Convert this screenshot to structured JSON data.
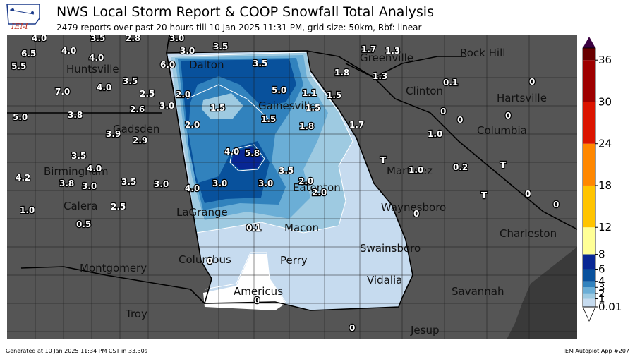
{
  "header": {
    "logo_text": "IEM",
    "title": "NWS Local Storm Report & COOP Snowfall Total Analysis",
    "subtitle": "2479 reports over past 20 hours till 10 Jan 2025 11:31 PM, grid size: 50km, Rbf: linear"
  },
  "footer": {
    "generated": "Generated at 10 Jan 2025 11:34 PM CST in 33.30s",
    "app": "IEM Autoplot App #207"
  },
  "colors": {
    "land_outside": "#555555",
    "water": "#3a3a3a",
    "background": "#ffffff"
  },
  "colorbar": {
    "labels": [
      "36",
      "30",
      "24",
      "18",
      "12",
      "8",
      "6",
      "4",
      "3",
      "2",
      "1",
      "0.01"
    ],
    "bins": [
      {
        "from": 0.01,
        "to": 1,
        "color": "#c6dbef"
      },
      {
        "from": 1,
        "to": 2,
        "color": "#9ecae1"
      },
      {
        "from": 2,
        "to": 3,
        "color": "#6baed6"
      },
      {
        "from": 3,
        "to": 4,
        "color": "#3182bd"
      },
      {
        "from": 4,
        "to": 6,
        "color": "#08519c"
      },
      {
        "from": 6,
        "to": 8,
        "color": "#082694"
      },
      {
        "from": 8,
        "to": 12,
        "color": "#ffff96"
      },
      {
        "from": 12,
        "to": 18,
        "color": "#ffc400"
      },
      {
        "from": 18,
        "to": 24,
        "color": "#ff8700"
      },
      {
        "from": 24,
        "to": 30,
        "color": "#db1400"
      },
      {
        "from": 30,
        "to": 36,
        "color": "#9e0000"
      },
      {
        "from": 36,
        "to": 40,
        "color": "#690000"
      }
    ]
  },
  "cities": [
    "Rock Hill",
    "Greenville",
    "Huntsville",
    "Dalton",
    "Clinton",
    "Hartsville",
    "Gainesville",
    "Columbia",
    "Gadsden",
    "Birmingham",
    "Martinez",
    "Eatonton",
    "Calera",
    "Waynesboro",
    "LaGrange",
    "Macon",
    "Charleston",
    "Swainsboro",
    "Columbus",
    "Montgomery",
    "Perry",
    "Vidalia",
    "Americus",
    "Savannah",
    "Troy",
    "Jesup"
  ],
  "reports": [
    "4.0",
    "3.5",
    "2.8",
    "3.0",
    "6.5",
    "4.0",
    "5.5",
    "4.0",
    "3.0",
    "3.5",
    "3.5",
    "1.7",
    "1.3",
    "6.0",
    "5.0",
    "1.1",
    "1.8",
    "1.3",
    "3.5",
    "7.0",
    "4.0",
    "2.5",
    "2.0",
    "1.5",
    "1.5",
    "0.1",
    "3.0",
    "1.5",
    "1.5",
    "2.6",
    "3.8",
    "5.0",
    "1.5",
    "1.8",
    "1.7",
    "0",
    "0",
    "0",
    "0",
    "3.9",
    "2.9",
    "2.0",
    "1.0",
    "3.5",
    "4.0",
    "5.8",
    "T",
    "4.2",
    "4.0",
    "3.5",
    "1.0",
    "0.2",
    "T",
    "3.8",
    "3.0",
    "3.5",
    "3.0",
    "4.0",
    "3.0",
    "3.0",
    "2.0",
    "2.0",
    "T",
    "0",
    "0",
    "1.0",
    "2.5",
    "0",
    "0.5",
    "0.1",
    "0",
    "0",
    "0"
  ]
}
